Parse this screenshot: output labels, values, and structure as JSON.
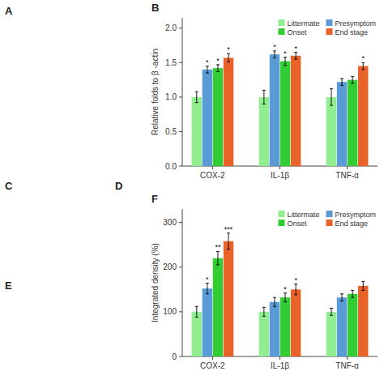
{
  "chart_data": [
    {
      "type": "bar",
      "title": "B",
      "y_label": "Relative folds to β -actin",
      "categories": [
        "COX-2",
        "IL-1β",
        "TNF-α"
      ],
      "series": [
        {
          "name": "Littermate",
          "color": "#90EE90",
          "values": [
            1.0,
            1.0,
            1.0
          ],
          "errors": [
            0.08,
            0.1,
            0.12
          ]
        },
        {
          "name": "Presymptom",
          "color": "#5B9BD5",
          "values": [
            1.4,
            1.62,
            1.22
          ],
          "errors": [
            0.05,
            0.05,
            0.05
          ],
          "annotations": [
            "*",
            "*",
            null
          ]
        },
        {
          "name": "Onset",
          "color": "#32CD32",
          "values": [
            1.42,
            1.52,
            1.25
          ],
          "errors": [
            0.05,
            0.06,
            0.05
          ],
          "annotations": [
            "*",
            "*",
            null
          ]
        },
        {
          "name": "End stage",
          "color": "#E8622A",
          "values": [
            1.57,
            1.6,
            1.45
          ],
          "errors": [
            0.06,
            0.05,
            0.05
          ],
          "annotations": [
            "*",
            "*",
            "*"
          ]
        }
      ],
      "ylim": [
        0.0,
        2.15
      ],
      "yticks": [
        {
          "value": 0,
          "label": "0.0"
        },
        0.5,
        {
          "value": 1,
          "label": "1.0"
        },
        1.5,
        {
          "value": 2,
          "label": "2.0"
        }
      ],
      "legend": "upper right",
      "grid": false
    },
    {
      "type": "bar",
      "title": "F",
      "y_label": "Integrated density (%)",
      "categories": [
        "COX-2",
        "IL-1β",
        "TNF-α"
      ],
      "series": [
        {
          "name": "Littermate",
          "color": "#90EE90",
          "values": [
            100,
            100,
            100
          ],
          "errors": [
            12,
            10,
            8
          ]
        },
        {
          "name": "Presymptom",
          "color": "#5B9BD5",
          "values": [
            152,
            122,
            132
          ],
          "errors": [
            12,
            10,
            8
          ],
          "annotations": [
            "*",
            null,
            null
          ]
        },
        {
          "name": "Onset",
          "color": "#32CD32",
          "values": [
            220,
            132,
            140
          ],
          "errors": [
            15,
            10,
            8
          ],
          "annotations": [
            "**",
            "*",
            null
          ]
        },
        {
          "name": "End stage",
          "color": "#E8622A",
          "values": [
            258,
            150,
            158
          ],
          "errors": [
            18,
            12,
            10
          ],
          "annotations": [
            "***",
            "*",
            null
          ]
        }
      ],
      "ylim": [
        0,
        330
      ],
      "yticks": [
        0,
        100,
        200,
        300
      ],
      "legend": "upper right",
      "grid": false
    }
  ],
  "annotations": [
    "A",
    "C",
    "D",
    "E"
  ]
}
